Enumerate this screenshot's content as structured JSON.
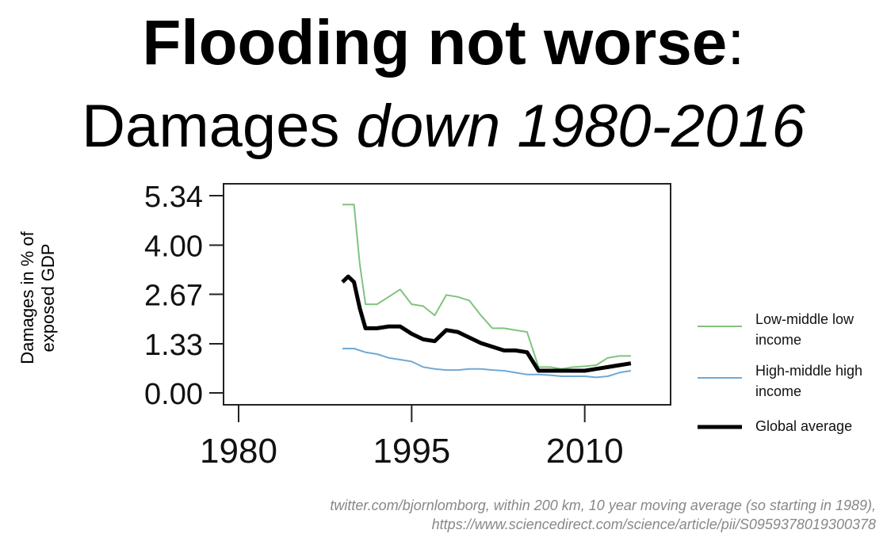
{
  "title": {
    "line1_bold": "Flooding not worse",
    "line1_colon": ":",
    "line2_plain": "Damages ",
    "line2_italic": "down 1980-2016"
  },
  "footnote": {
    "line1": "twitter.com/bjornlomborg, within 200 km, 10 year moving average (so starting in 1989),",
    "line2": "https://www.sciencedirect.com/science/article/pii/S0959378019300378"
  },
  "chart_data": {
    "type": "line",
    "title": "",
    "xlabel": "",
    "ylabel": "Damages in % of exposed GDP",
    "xlim": [
      1980,
      2016
    ],
    "ylim": [
      0,
      5.34
    ],
    "x_ticks": [
      1980,
      1995,
      2010
    ],
    "y_ticks": [
      0.0,
      1.33,
      2.67,
      4.0,
      5.34
    ],
    "y_tick_labels": [
      "0.00",
      "1.33",
      "2.67",
      "4.00",
      "5.34"
    ],
    "legend_position": "right",
    "grid": false,
    "series": [
      {
        "name": "Low-middle low income",
        "color": "#7fc47f",
        "points": [
          [
            1989,
            5.1
          ],
          [
            1990,
            5.1
          ],
          [
            1990.5,
            3.5
          ],
          [
            1991,
            2.4
          ],
          [
            1992,
            2.4
          ],
          [
            1993,
            2.6
          ],
          [
            1994,
            2.8
          ],
          [
            1995,
            2.4
          ],
          [
            1996,
            2.35
          ],
          [
            1997,
            2.1
          ],
          [
            1998,
            2.65
          ],
          [
            1999,
            2.6
          ],
          [
            2000,
            2.5
          ],
          [
            2001,
            2.1
          ],
          [
            2002,
            1.75
          ],
          [
            2003,
            1.75
          ],
          [
            2004,
            1.7
          ],
          [
            2005,
            1.65
          ],
          [
            2006,
            0.7
          ],
          [
            2007,
            0.7
          ],
          [
            2008,
            0.65
          ],
          [
            2009,
            0.7
          ],
          [
            2010,
            0.72
          ],
          [
            2011,
            0.75
          ],
          [
            2012,
            0.95
          ],
          [
            2013,
            1.0
          ],
          [
            2014,
            1.0
          ]
        ]
      },
      {
        "name": "High-middle high income",
        "color": "#6fa9d6",
        "points": [
          [
            1989,
            1.2
          ],
          [
            1990,
            1.2
          ],
          [
            1991,
            1.1
          ],
          [
            1992,
            1.05
          ],
          [
            1993,
            0.95
          ],
          [
            1994,
            0.9
          ],
          [
            1995,
            0.85
          ],
          [
            1996,
            0.7
          ],
          [
            1997,
            0.65
          ],
          [
            1998,
            0.62
          ],
          [
            1999,
            0.62
          ],
          [
            2000,
            0.65
          ],
          [
            2001,
            0.65
          ],
          [
            2002,
            0.62
          ],
          [
            2003,
            0.6
          ],
          [
            2004,
            0.55
          ],
          [
            2005,
            0.5
          ],
          [
            2006,
            0.5
          ],
          [
            2007,
            0.48
          ],
          [
            2008,
            0.45
          ],
          [
            2009,
            0.45
          ],
          [
            2010,
            0.45
          ],
          [
            2011,
            0.42
          ],
          [
            2012,
            0.45
          ],
          [
            2013,
            0.55
          ],
          [
            2014,
            0.6
          ]
        ]
      },
      {
        "name": "Global average",
        "color": "#000000",
        "points": [
          [
            1989,
            3.0
          ],
          [
            1989.5,
            3.15
          ],
          [
            1990,
            3.0
          ],
          [
            1990.5,
            2.3
          ],
          [
            1991,
            1.75
          ],
          [
            1992,
            1.75
          ],
          [
            1993,
            1.8
          ],
          [
            1994,
            1.8
          ],
          [
            1995,
            1.6
          ],
          [
            1996,
            1.45
          ],
          [
            1997,
            1.4
          ],
          [
            1998,
            1.7
          ],
          [
            1999,
            1.65
          ],
          [
            2000,
            1.5
          ],
          [
            2001,
            1.35
          ],
          [
            2002,
            1.25
          ],
          [
            2003,
            1.15
          ],
          [
            2004,
            1.15
          ],
          [
            2005,
            1.1
          ],
          [
            2006,
            0.6
          ],
          [
            2007,
            0.6
          ],
          [
            2008,
            0.6
          ],
          [
            2009,
            0.6
          ],
          [
            2010,
            0.6
          ],
          [
            2011,
            0.65
          ],
          [
            2012,
            0.7
          ],
          [
            2013,
            0.75
          ],
          [
            2014,
            0.8
          ]
        ]
      }
    ]
  }
}
